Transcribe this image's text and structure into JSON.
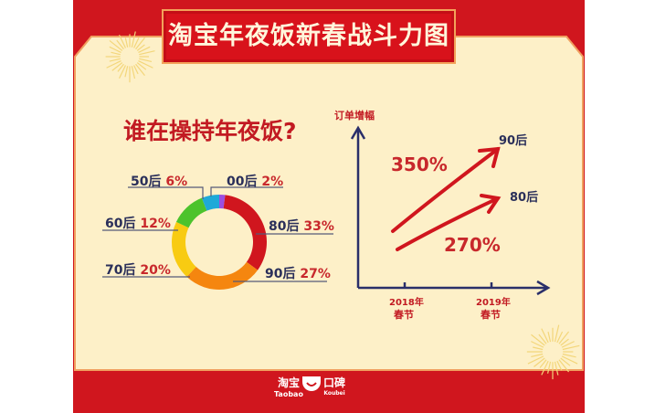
{
  "title": "淘宝年夜饭新春战斗力图",
  "colors": {
    "background": "#d0161e",
    "panel": "#fdf0c8",
    "axis": "#2a2f6a",
    "arrow": "#d0161e"
  },
  "chart_data": [
    {
      "type": "pie",
      "style": "donut",
      "title": "谁在操持年夜饭?",
      "slices": [
        {
          "label": "00后",
          "value": 2,
          "display": "2%",
          "color": "#9b4fe0"
        },
        {
          "label": "80后",
          "value": 33,
          "display": "33%",
          "color": "#d0161e"
        },
        {
          "label": "90后",
          "value": 27,
          "display": "27%",
          "color": "#f5860f"
        },
        {
          "label": "70后",
          "value": 20,
          "display": "20%",
          "color": "#f8cb12"
        },
        {
          "label": "60后",
          "value": 12,
          "display": "12%",
          "color": "#4cc32c"
        },
        {
          "label": "50后",
          "value": 6,
          "display": "6%",
          "color": "#1ea9d8"
        }
      ]
    },
    {
      "type": "line",
      "ylabel": "订单增幅",
      "categories": [
        "2018年\n春节",
        "2019年\n春节"
      ],
      "cat_line1": [
        "2018年",
        "2019年"
      ],
      "cat_line2": [
        "春节",
        "春节"
      ],
      "series": [
        {
          "name": "90后",
          "growth": "350%"
        },
        {
          "name": "80后",
          "growth": "270%"
        }
      ]
    }
  ],
  "footer": {
    "taobao_cn": "淘宝",
    "taobao_en": "Taobao",
    "koubei_cn": "口碑",
    "koubei_en": "Koubei"
  }
}
